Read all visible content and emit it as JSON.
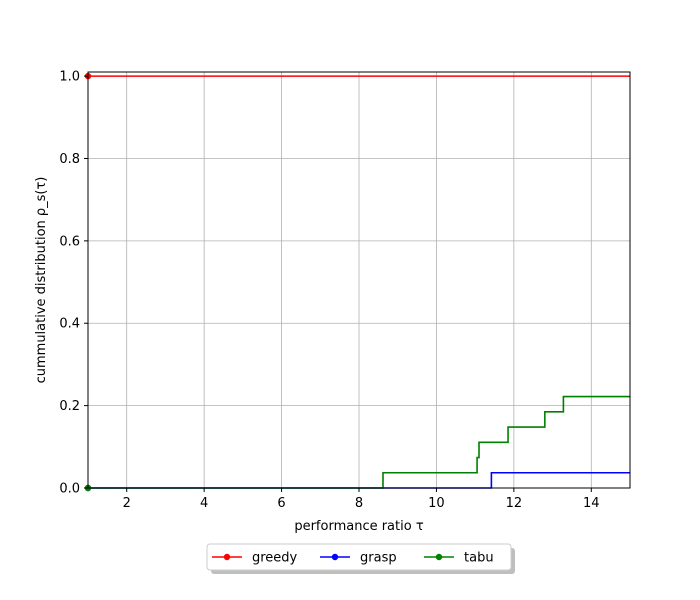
{
  "chart_data": {
    "type": "line",
    "step": true,
    "xlabel": "performance ratio τ",
    "ylabel": "cummulative distribution ρ_s(τ)",
    "xlim": [
      1,
      15
    ],
    "ylim": [
      0,
      1.01
    ],
    "x_ticks": [
      2,
      4,
      6,
      8,
      10,
      12,
      14
    ],
    "y_ticks": [
      0.0,
      0.2,
      0.4,
      0.6,
      0.8,
      1.0
    ],
    "x_tick_labels": [
      "2",
      "4",
      "6",
      "8",
      "10",
      "12",
      "14"
    ],
    "y_tick_labels": [
      "0.0",
      "0.2",
      "0.4",
      "0.6",
      "0.8",
      "1.0"
    ],
    "grid": true,
    "legend_position": "bottom-center, outside",
    "series": [
      {
        "name": "greedy",
        "color": "#ff0000",
        "start_marker": [
          1,
          1.0
        ],
        "points": [
          [
            1,
            1.0
          ],
          [
            15,
            1.0
          ]
        ]
      },
      {
        "name": "grasp",
        "color": "#0000ff",
        "start_marker": [
          1,
          0.0
        ],
        "points": [
          [
            1,
            0.0
          ],
          [
            11.42,
            0.0
          ],
          [
            11.42,
            0.037
          ],
          [
            15,
            0.037
          ]
        ]
      },
      {
        "name": "tabu",
        "color": "#008000",
        "start_marker": [
          1,
          0.0
        ],
        "points": [
          [
            1,
            0.0
          ],
          [
            8.62,
            0.0
          ],
          [
            8.62,
            0.037
          ],
          [
            11.05,
            0.037
          ],
          [
            11.05,
            0.074
          ],
          [
            11.1,
            0.074
          ],
          [
            11.1,
            0.111
          ],
          [
            11.85,
            0.111
          ],
          [
            11.85,
            0.148
          ],
          [
            12.8,
            0.148
          ],
          [
            12.8,
            0.185
          ],
          [
            13.28,
            0.185
          ],
          [
            13.28,
            0.222
          ],
          [
            15,
            0.222
          ]
        ]
      }
    ]
  }
}
